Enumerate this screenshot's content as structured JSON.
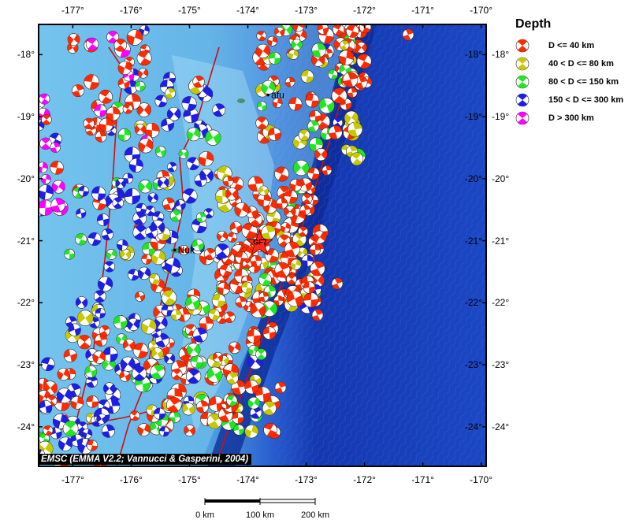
{
  "map": {
    "lon_labels": [
      "-177°",
      "-176°",
      "-175°",
      "-174°",
      "-173°",
      "-172°",
      "-171°",
      "-170°"
    ],
    "lat_labels": [
      "-18°",
      "-19°",
      "-20°",
      "-21°",
      "-22°",
      "-23°",
      "-24°"
    ],
    "extent": {
      "lon_min": -177.6,
      "lon_max": -169.9,
      "lat_min": -24.65,
      "lat_max": -17.5
    },
    "places": [
      {
        "name": "Nuk",
        "lon": -175.2,
        "lat": -21.15
      },
      {
        "name": "afu",
        "lon": -173.6,
        "lat": -18.65
      }
    ],
    "epicenter": {
      "label": "GF7",
      "lon": -173.8,
      "lat": -21.05,
      "color": "#ff2a1a"
    },
    "ocean_colors": {
      "shelf": "#7fc8ee",
      "deep": "#1a3fb8",
      "trench": "#0a1f85"
    }
  },
  "legend": {
    "title": "Depth",
    "items": [
      {
        "label": "D <= 40 km",
        "color": "#ff2a00"
      },
      {
        "label": "40 < D <= 80 km",
        "color": "#c8c800"
      },
      {
        "label": "80 < D <= 150 km",
        "color": "#22e622"
      },
      {
        "label": "150 < D <= 300 km",
        "color": "#1e1ee6"
      },
      {
        "label": "D > 300 km",
        "color": "#ff00ff"
      }
    ]
  },
  "credit": "EMSC (EMMA V2.2; Vannucci & Gasperini, 2004)",
  "scale_bar": {
    "labels": [
      "0 km",
      "100 km",
      "200 km"
    ]
  }
}
